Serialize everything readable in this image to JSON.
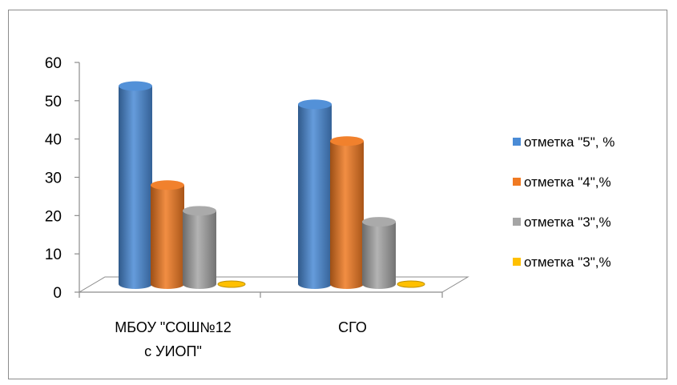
{
  "chart_data": {
    "type": "bar",
    "categories": [
      "МБОУ \"СОШ№12\nс УИОП\"",
      "СГО"
    ],
    "series": [
      {
        "name": "отметка \"5\", %",
        "values": [
          54,
          49
        ],
        "color": "#4a8bd6"
      },
      {
        "name": "отметка \"4\",%",
        "values": [
          27,
          39
        ],
        "color": "#f07a22"
      },
      {
        "name": "отметка \"3\",%",
        "values": [
          20,
          17
        ],
        "color": "#a5a5a5"
      },
      {
        "name": "отметка \"3\",%",
        "values": [
          0,
          0
        ],
        "color": "#ffc000"
      }
    ],
    "yticks": [
      "0",
      "10",
      "20",
      "30",
      "40",
      "50",
      "60"
    ],
    "ylim": [
      0,
      60
    ],
    "legend_position": "right",
    "style": "3d-cylinder"
  }
}
